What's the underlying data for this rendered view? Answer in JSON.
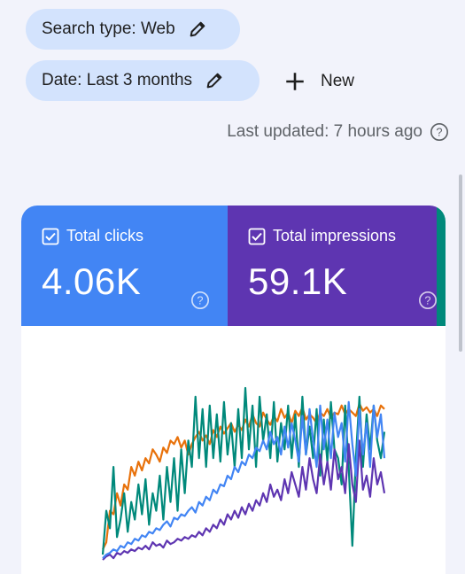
{
  "filters": {
    "search_type": "Search type: Web",
    "date": "Date: Last 3 months",
    "new_label": "New"
  },
  "status": {
    "last_updated": "Last updated: 7 hours ago"
  },
  "metrics": {
    "clicks": {
      "label": "Total clicks",
      "value": "4.06K",
      "color": "#4285f4"
    },
    "impressions": {
      "label": "Total impressions",
      "value": "59.1K",
      "color": "#5e35b1"
    }
  },
  "chart_data": {
    "type": "line",
    "series": [
      {
        "color": "#e8710a",
        "values": [
          8,
          12,
          30,
          28,
          40,
          33,
          45,
          42,
          55,
          50,
          58,
          53,
          60,
          57,
          65,
          62,
          58,
          66,
          63,
          70,
          68,
          72,
          66,
          70,
          62,
          68,
          72,
          75,
          70,
          73,
          68,
          76,
          72,
          78,
          74,
          77,
          80,
          75,
          79,
          76,
          82,
          78,
          85,
          80,
          78,
          86,
          82,
          79,
          84,
          81,
          88,
          83,
          86,
          80,
          87,
          84,
          89,
          82,
          85,
          83,
          80,
          86,
          84,
          88,
          83,
          86,
          85,
          90,
          85,
          88,
          86,
          84,
          91,
          87,
          89,
          86,
          88,
          84,
          90,
          88
        ]
      },
      {
        "color": "#00897b",
        "values": [
          5,
          30,
          20,
          55,
          15,
          25,
          40,
          18,
          35,
          25,
          45,
          28,
          48,
          22,
          40,
          30,
          50,
          25,
          55,
          35,
          60,
          30,
          65,
          40,
          70,
          55,
          95,
          60,
          88,
          55,
          90,
          60,
          85,
          58,
          92,
          62,
          80,
          55,
          88,
          60,
          100,
          65,
          90,
          55,
          95,
          70,
          85,
          60,
          92,
          58,
          80,
          65,
          90,
          60,
          85,
          55,
          95,
          62,
          78,
          60,
          88,
          50,
          82,
          58,
          92,
          65,
          60,
          45,
          90,
          55,
          10,
          60,
          95,
          55,
          85,
          65,
          90,
          70,
          60,
          75
        ]
      },
      {
        "color": "#5e35b1",
        "values": [
          2,
          4,
          5,
          3,
          6,
          5,
          7,
          6,
          8,
          7,
          9,
          8,
          10,
          8,
          12,
          10,
          11,
          9,
          13,
          11,
          12,
          14,
          13,
          15,
          14,
          16,
          15,
          18,
          16,
          20,
          18,
          22,
          20,
          25,
          22,
          28,
          25,
          30,
          26,
          32,
          28,
          34,
          30,
          36,
          33,
          40,
          35,
          45,
          38,
          42,
          36,
          48,
          40,
          52,
          45,
          38,
          55,
          42,
          60,
          48,
          40,
          62,
          45,
          58,
          42,
          65,
          48,
          55,
          40,
          68,
          45,
          35,
          70,
          42,
          50,
          38,
          60,
          45,
          52,
          40
        ]
      },
      {
        "color": "#4285f4",
        "values": [
          3,
          5,
          6,
          8,
          7,
          10,
          9,
          12,
          11,
          14,
          13,
          16,
          15,
          18,
          17,
          20,
          19,
          22,
          24,
          21,
          26,
          25,
          28,
          27,
          30,
          32,
          29,
          35,
          33,
          38,
          36,
          42,
          40,
          45,
          44,
          50,
          48,
          55,
          52,
          58,
          56,
          62,
          60,
          66,
          64,
          70,
          65,
          75,
          68,
          72,
          62,
          78,
          66,
          80,
          70,
          58,
          84,
          62,
          88,
          70,
          55,
          90,
          65,
          82,
          60,
          86,
          72,
          80,
          58,
          92,
          68,
          50,
          88,
          62,
          80,
          55,
          90,
          72,
          85,
          60
        ]
      }
    ]
  }
}
